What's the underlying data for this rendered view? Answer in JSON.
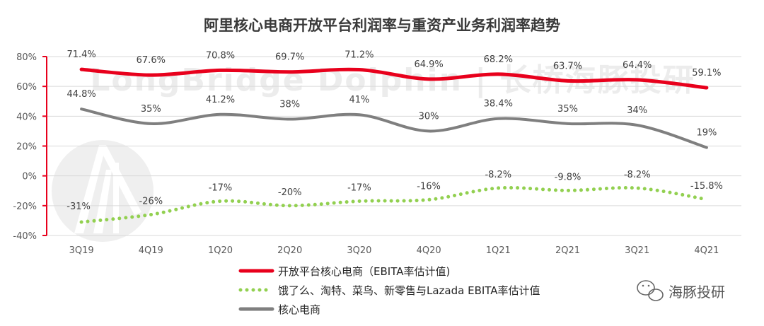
{
  "chart_data": {
    "type": "line",
    "title": "阿里核心电商开放平台利润率与重资产业务利润率趋势",
    "categories": [
      "3Q19",
      "4Q19",
      "1Q20",
      "2Q20",
      "3Q20",
      "4Q20",
      "1Q21",
      "2Q21",
      "3Q21",
      "4Q21"
    ],
    "y_ticks": [
      "80%",
      "60%",
      "40%",
      "20%",
      "0%",
      "-20%",
      "-40%"
    ],
    "ylim": [
      -40,
      80
    ],
    "grid": "horizontal",
    "legend_position": "bottom-left",
    "series": [
      {
        "name": "开放平台核心电商（EBITA率估计值)",
        "values": [
          71.4,
          67.6,
          70.8,
          69.7,
          71.2,
          64.9,
          68.2,
          63.7,
          64.4,
          59.1
        ],
        "labels": [
          "71.4%",
          "67.6%",
          "70.8%",
          "69.7%",
          "71.2%",
          "64.9%",
          "68.2%",
          "63.7%",
          "64.4%",
          "59.1%"
        ],
        "color": "#e8001c",
        "style": "solid"
      },
      {
        "name": "饿了么、淘特、菜鸟、新零售与Lazada EBITA率估计值",
        "values": [
          -31,
          -26,
          -17,
          -20,
          -17,
          -16,
          -8.2,
          -9.8,
          -8.2,
          -15.8
        ],
        "labels": [
          "-31%",
          "-26%",
          "-17%",
          "-20%",
          "-17%",
          "-16%",
          "-8.2%",
          "-9.8%",
          "-8.2%",
          "-15.8%"
        ],
        "color": "#92d050",
        "style": "dotted"
      },
      {
        "name": "核心电商",
        "values": [
          44.8,
          35,
          41.2,
          38,
          41,
          30,
          38.4,
          35,
          34,
          19
        ],
        "labels": [
          "44.8%",
          "35%",
          "41.2%",
          "38%",
          "41%",
          "30%",
          "38.4%",
          "35%",
          "34%",
          "19%"
        ],
        "color": "#7f7f7f",
        "style": "solid"
      }
    ]
  },
  "watermark": "LongBridge Dolphin | 长桥海豚投研",
  "brand": {
    "logo_icon": "wechat-icon",
    "name": "海豚投研"
  }
}
